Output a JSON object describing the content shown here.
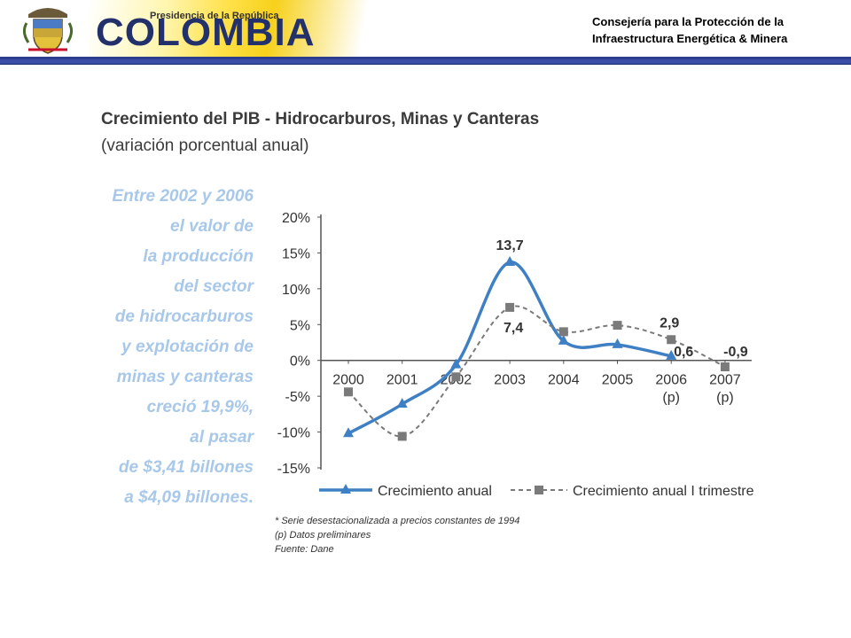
{
  "header": {
    "presidencia": "Presidencia de la República",
    "colombia": "COLOMBIA",
    "consejeria_line1": "Consejería para la Protección de la",
    "consejeria_line2": "Infraestructura Energética & Minera"
  },
  "side_note": [
    "Entre 2002 y 2006",
    "el valor de",
    "la producción",
    "del sector",
    "de hidrocarburos",
    "y explotación de",
    "minas y canteras",
    "creció 19,9%,",
    "al pasar",
    "de $3,41 billones",
    "a $4,09 billones."
  ],
  "footnotes": [
    "* Serie desestacionalizada a precios constantes de 1994",
    "(p) Datos preliminares",
    "Fuente: Dane"
  ],
  "chart_data": {
    "type": "line",
    "title": "Crecimiento del PIB - Hidrocarburos, Minas y Canteras",
    "subtitle": "(variación porcentual anual)",
    "categories": [
      "2000",
      "2001",
      "2002",
      "2003",
      "2004",
      "2005",
      "2006",
      "2007"
    ],
    "category_sublabels": [
      "",
      "",
      "",
      "",
      "",
      "",
      "(p)",
      "(p)"
    ],
    "yticks": [
      "20%",
      "15%",
      "10%",
      "5%",
      "0%",
      "-5%",
      "-10%",
      "-15%"
    ],
    "ylim": [
      -15,
      20
    ],
    "series": [
      {
        "name": "Crecimiento anual",
        "style": "solid",
        "marker": "triangle",
        "color": "#3f80c4",
        "x": [
          0,
          1,
          2,
          3,
          4,
          5,
          6
        ],
        "values": [
          -10.2,
          -6.1,
          -0.6,
          13.7,
          2.7,
          2.2,
          0.6
        ]
      },
      {
        "name": "Crecimiento anual I trimestre",
        "style": "dashed",
        "marker": "square",
        "color": "#7a7a7a",
        "x": [
          0,
          1,
          2,
          3,
          4,
          5,
          6,
          7
        ],
        "values": [
          -4.4,
          -10.6,
          -2.3,
          7.4,
          4.0,
          4.9,
          2.9,
          -0.9
        ]
      }
    ],
    "annotations": [
      {
        "text": "13,7",
        "series": 0,
        "index": 3
      },
      {
        "text": "7,4",
        "series": 1,
        "index": 3
      },
      {
        "text": "2,9",
        "series": 1,
        "index": 6
      },
      {
        "text": "0,6",
        "series": 0,
        "index": 6
      },
      {
        "text": "-0,9",
        "series": 1,
        "index": 7
      }
    ],
    "legend_position": "bottom",
    "grid": false
  }
}
